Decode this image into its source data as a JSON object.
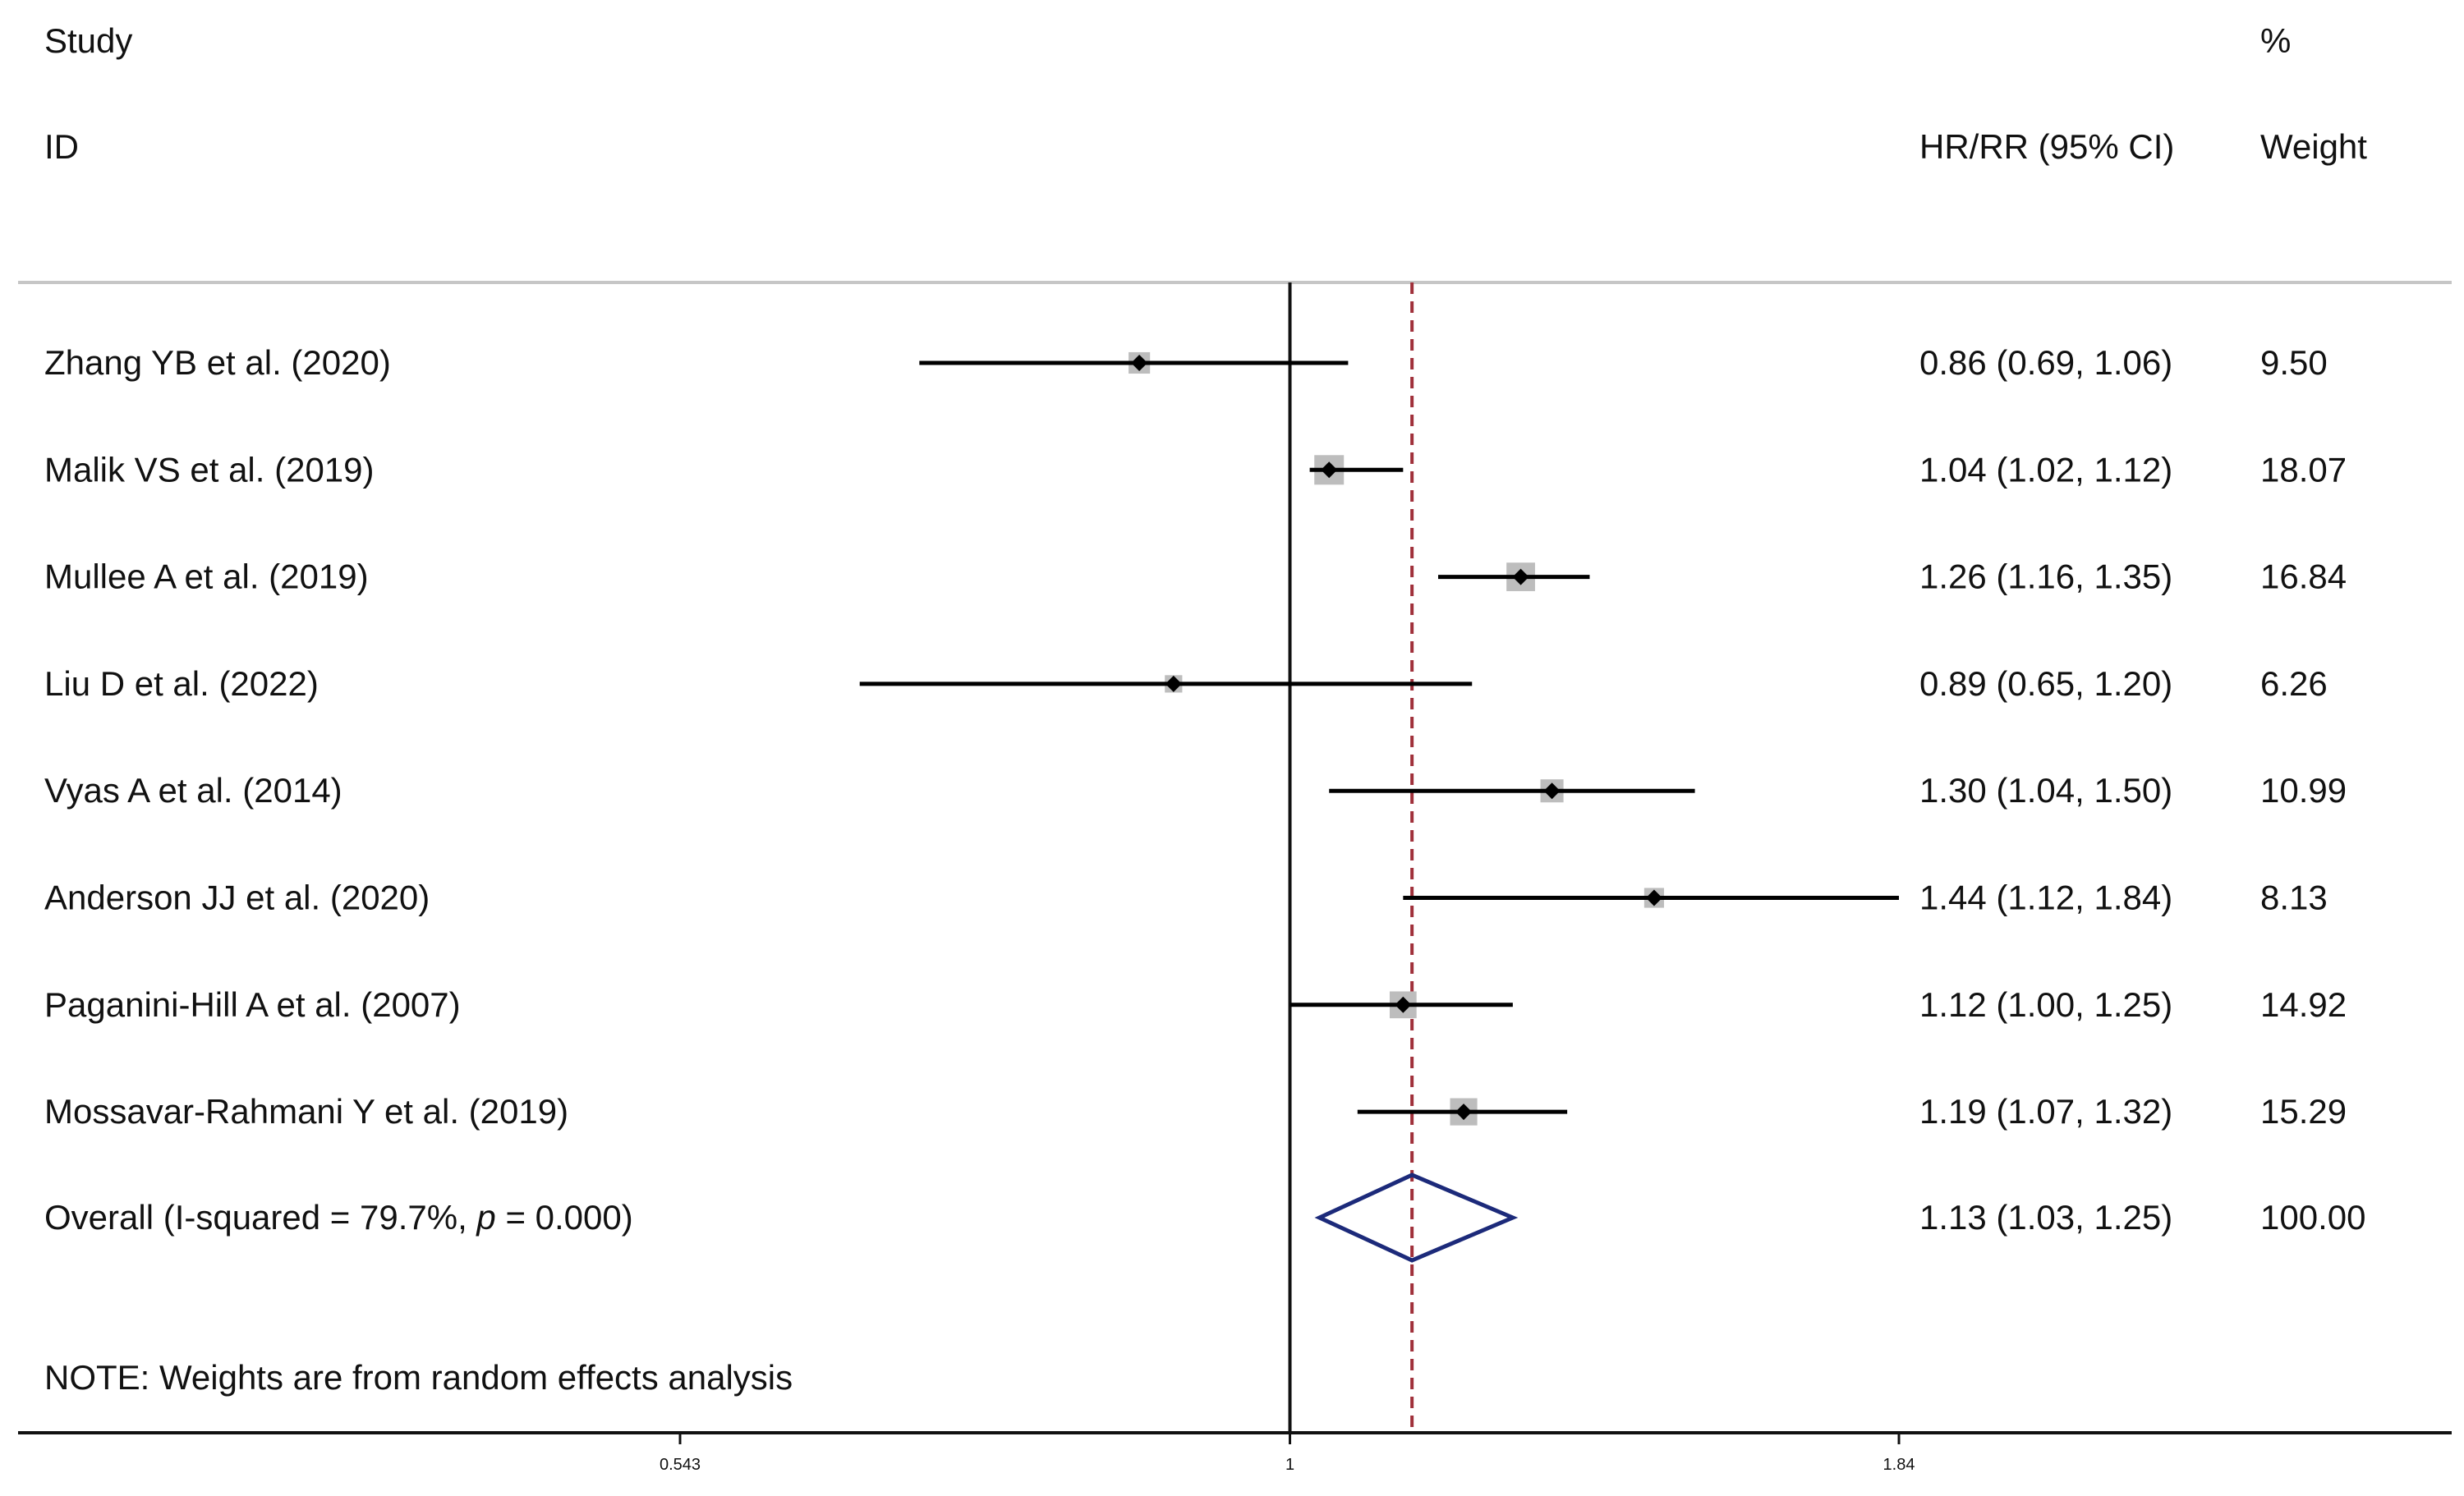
{
  "chart_data": {
    "type": "forest",
    "header": {
      "study_line1": "Study",
      "study_line2": "ID",
      "effect_label": "HR/RR (95% CI)",
      "weight_line1": "%",
      "weight_line2": "Weight"
    },
    "studies": [
      {
        "label": "Zhang YB et al. (2020)",
        "estimate": 0.86,
        "lower": 0.69,
        "upper": 1.06,
        "ci_text": "0.86 (0.69, 1.06)",
        "weight": 9.5,
        "weight_text": "9.50"
      },
      {
        "label": "Malik VS et al. (2019)",
        "estimate": 1.04,
        "lower": 1.02,
        "upper": 1.12,
        "ci_text": "1.04 (1.02, 1.12)",
        "weight": 18.07,
        "weight_text": "18.07"
      },
      {
        "label": "Mullee A et al. (2019)",
        "estimate": 1.26,
        "lower": 1.16,
        "upper": 1.35,
        "ci_text": "1.26 (1.16, 1.35)",
        "weight": 16.84,
        "weight_text": "16.84"
      },
      {
        "label": "Liu D et al. (2022)",
        "estimate": 0.89,
        "lower": 0.65,
        "upper": 1.2,
        "ci_text": "0.89 (0.65, 1.20)",
        "weight": 6.26,
        "weight_text": "6.26"
      },
      {
        "label": "Vyas A et al. (2014)",
        "estimate": 1.3,
        "lower": 1.04,
        "upper": 1.5,
        "ci_text": "1.30 (1.04, 1.50)",
        "weight": 10.99,
        "weight_text": "10.99"
      },
      {
        "label": "Anderson JJ et al. (2020)",
        "estimate": 1.44,
        "lower": 1.12,
        "upper": 1.84,
        "ci_text": "1.44 (1.12, 1.84)",
        "weight": 8.13,
        "weight_text": "8.13"
      },
      {
        "label": "Paganini-Hill A et al. (2007)",
        "estimate": 1.12,
        "lower": 1.0,
        "upper": 1.25,
        "ci_text": "1.12 (1.00, 1.25)",
        "weight": 14.92,
        "weight_text": "14.92"
      },
      {
        "label": "Mossavar-Rahmani Y et al. (2019)",
        "estimate": 1.19,
        "lower": 1.07,
        "upper": 1.32,
        "ci_text": "1.19 (1.07, 1.32)",
        "weight": 15.29,
        "weight_text": "15.29"
      }
    ],
    "overall": {
      "label_prefix": "Overall  (I-squared = 79.7%, ",
      "label_p": "p",
      "label_suffix": " = 0.000)",
      "estimate": 1.13,
      "lower": 1.03,
      "upper": 1.25,
      "ci_text": "1.13 (1.03, 1.25)",
      "weight_text": "100.00"
    },
    "note": "NOTE: Weights are from random effects analysis",
    "x_scale": "log",
    "xlim": [
      0.543,
      1.84
    ],
    "ticks": [
      0.543,
      1,
      1.84
    ],
    "tick_labels": [
      "0.543",
      "1",
      "1.84"
    ],
    "null_line": 1,
    "colors": {
      "axis": "#111111",
      "ci_line": "#000000",
      "point": "#000000",
      "weight_box": "#bdbdbd",
      "overall_line": "#a0303a",
      "diamond": "#1c2a7a",
      "divider": "#c6c6c6"
    }
  }
}
